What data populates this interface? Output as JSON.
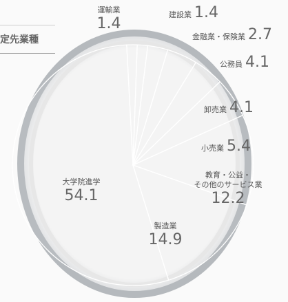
{
  "chart_data": {
    "type": "pie",
    "title": "定先業種",
    "categories": [
      "運輸業",
      "建設業",
      "金融業・保険業",
      "公務員",
      "卸売業",
      "小売業",
      "教育・公益・\nその他のサービス業",
      "製造業",
      "大学院進学"
    ],
    "values": [
      1.4,
      1.4,
      2.7,
      4.1,
      4.1,
      5.4,
      12.2,
      14.9,
      54.1
    ]
  }
}
